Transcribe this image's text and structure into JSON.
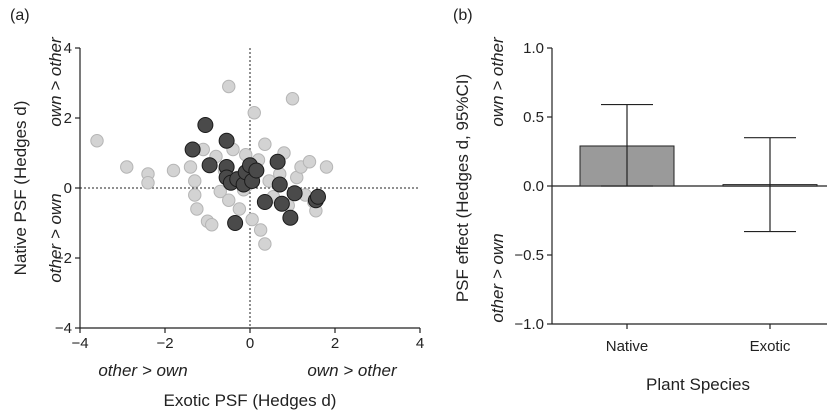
{
  "chart_data": [
    {
      "type": "scatter",
      "panel_label": "(a)",
      "xlabel": "Exotic PSF (Hedges d)",
      "ylabel": "Native PSF (Hedges d)",
      "xlim": [
        -4,
        4
      ],
      "ylim": [
        -4,
        4
      ],
      "xticks": [
        "−4",
        "−2",
        "0",
        "2",
        "4"
      ],
      "yticks": [
        "4",
        "2",
        "0",
        "−2",
        "−4"
      ],
      "annotations": {
        "x_negative": "other > own",
        "x_positive": "own > other",
        "y_positive": "own > other",
        "y_negative": "other > own"
      },
      "colors": {
        "light": "#d3d3d3",
        "dark": "#4a4a4a"
      },
      "series": [
        {
          "shade": "light",
          "points": [
            [
              -3.6,
              1.35
            ],
            [
              -2.9,
              0.6
            ],
            [
              -2.4,
              0.4
            ],
            [
              -2.4,
              0.15
            ],
            [
              -1.8,
              0.5
            ],
            [
              -1.4,
              0.6
            ],
            [
              -1.3,
              0.2
            ],
            [
              -1.3,
              -0.2
            ],
            [
              -1.25,
              -0.6
            ],
            [
              -1.1,
              1.1
            ],
            [
              -1.0,
              -0.95
            ],
            [
              -0.9,
              -1.05
            ],
            [
              -0.8,
              0.9
            ],
            [
              -0.7,
              -0.1
            ],
            [
              -0.6,
              0.5
            ],
            [
              -0.5,
              2.9
            ],
            [
              -0.5,
              -0.35
            ],
            [
              -0.4,
              1.1
            ],
            [
              -0.3,
              0.3
            ],
            [
              -0.25,
              -0.6
            ],
            [
              -0.1,
              0.95
            ],
            [
              -0.05,
              0.1
            ],
            [
              0.0,
              0.5
            ],
            [
              0.05,
              -0.9
            ],
            [
              0.1,
              2.15
            ],
            [
              0.2,
              0.8
            ],
            [
              0.25,
              -1.2
            ],
            [
              0.35,
              -1.6
            ],
            [
              0.35,
              1.25
            ],
            [
              0.45,
              0.2
            ],
            [
              0.55,
              -0.25
            ],
            [
              0.7,
              0.4
            ],
            [
              0.8,
              1.0
            ],
            [
              0.9,
              -0.5
            ],
            [
              1.0,
              2.55
            ],
            [
              1.1,
              0.3
            ],
            [
              1.2,
              0.6
            ],
            [
              1.3,
              -0.2
            ],
            [
              1.4,
              0.75
            ],
            [
              1.5,
              -0.4
            ],
            [
              1.55,
              -0.65
            ],
            [
              1.8,
              0.6
            ],
            [
              -0.15,
              -0.05
            ]
          ]
        },
        {
          "shade": "dark",
          "points": [
            [
              -1.35,
              1.1
            ],
            [
              -1.05,
              1.8
            ],
            [
              -0.95,
              0.65
            ],
            [
              -0.55,
              1.35
            ],
            [
              -0.55,
              0.6
            ],
            [
              -0.55,
              0.3
            ],
            [
              -0.45,
              0.15
            ],
            [
              -0.3,
              0.25
            ],
            [
              -0.35,
              -1.0
            ],
            [
              -0.15,
              0.1
            ],
            [
              -0.1,
              0.45
            ],
            [
              0.0,
              0.65
            ],
            [
              0.05,
              0.2
            ],
            [
              0.15,
              0.5
            ],
            [
              0.35,
              -0.4
            ],
            [
              0.65,
              0.75
            ],
            [
              0.7,
              0.1
            ],
            [
              0.75,
              -0.45
            ],
            [
              0.95,
              -0.85
            ],
            [
              1.05,
              -0.15
            ],
            [
              1.55,
              -0.35
            ],
            [
              1.6,
              -0.25
            ]
          ]
        }
      ]
    },
    {
      "type": "bar",
      "panel_label": "(b)",
      "xlabel": "Plant  Species",
      "ylabel": "PSF effect (Hedges d, 95%CI)",
      "ylim": [
        -1.0,
        1.0
      ],
      "yticks": [
        "1.0",
        "0.5",
        "0.0",
        "−0.5",
        "−1.0"
      ],
      "annotations": {
        "y_positive": "own > other",
        "y_negative": "other > own"
      },
      "categories": [
        "Native",
        "Exotic"
      ],
      "values": [
        0.29,
        0.01
      ],
      "ci_lower": [
        0.0,
        -0.33
      ],
      "ci_upper": [
        0.59,
        0.35
      ],
      "bar_color": "#9a9a9a"
    }
  ]
}
